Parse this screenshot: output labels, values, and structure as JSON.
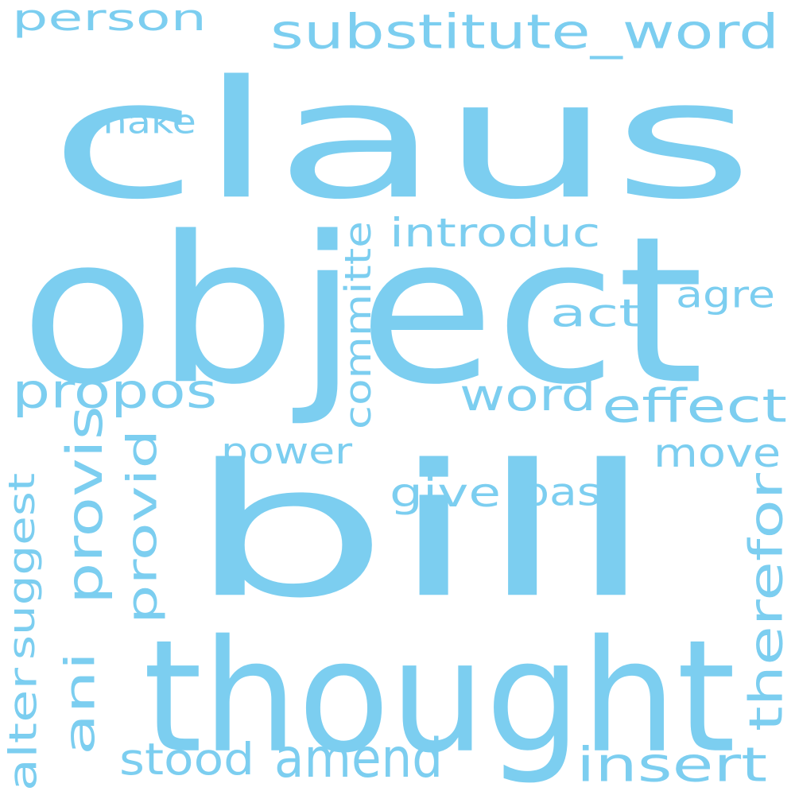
{
  "colors": {
    "background": "#ffffff",
    "word": "#7ccef0"
  },
  "words": [
    {
      "id": "claus",
      "text": "claus"
    },
    {
      "id": "object",
      "text": "object"
    },
    {
      "id": "bill",
      "text": "bill"
    },
    {
      "id": "thought",
      "text": "thought"
    },
    {
      "id": "person",
      "text": "person"
    },
    {
      "id": "substitute_word",
      "text": "substitute_word"
    },
    {
      "id": "make",
      "text": "make"
    },
    {
      "id": "introduc",
      "text": "introduc"
    },
    {
      "id": "committe",
      "text": "committe"
    },
    {
      "id": "agre",
      "text": "agre"
    },
    {
      "id": "act",
      "text": "act"
    },
    {
      "id": "propos",
      "text": "propos"
    },
    {
      "id": "word",
      "text": "word"
    },
    {
      "id": "effect",
      "text": "effect"
    },
    {
      "id": "power",
      "text": "power"
    },
    {
      "id": "move",
      "text": "move"
    },
    {
      "id": "give",
      "text": "give"
    },
    {
      "id": "pass",
      "text": "pass"
    },
    {
      "id": "provis",
      "text": "provis"
    },
    {
      "id": "provid",
      "text": "provid"
    },
    {
      "id": "suggest",
      "text": "suggest"
    },
    {
      "id": "therefor",
      "text": "therefor"
    },
    {
      "id": "ani",
      "text": "ani"
    },
    {
      "id": "alter",
      "text": "alter"
    },
    {
      "id": "stood",
      "text": "stood"
    },
    {
      "id": "amend",
      "text": "amend"
    },
    {
      "id": "insert",
      "text": "insert"
    }
  ]
}
